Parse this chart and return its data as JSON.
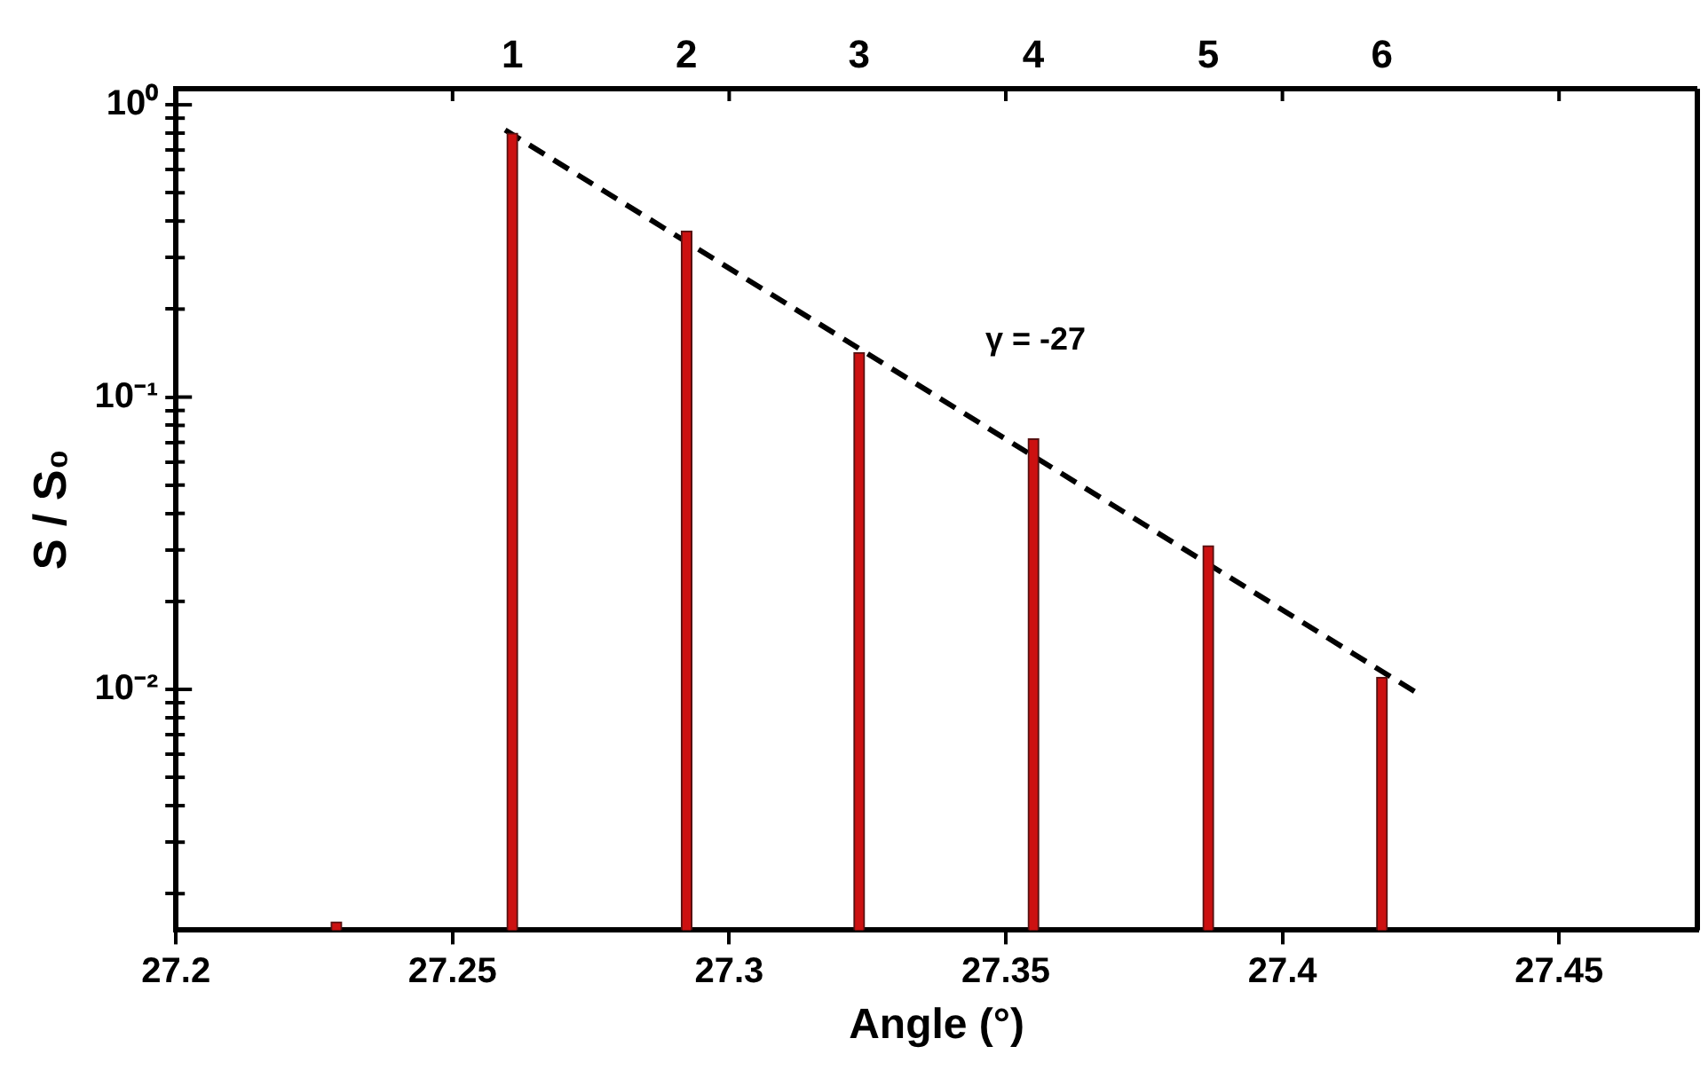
{
  "chart_data": {
    "type": "bar",
    "xlabel": "Angle (°)",
    "ylabel": "S / S₀",
    "series": [
      {
        "color": "#cc1111",
        "x": [
          27.229,
          27.2608,
          27.2923,
          27.3235,
          27.355,
          27.3866,
          27.418
        ],
        "values": [
          0.0016,
          0.8,
          0.37,
          0.142,
          0.072,
          0.031,
          0.011
        ]
      },
      {
        "type": "line",
        "color": "#000000",
        "line_style": "dashed",
        "x": [
          27.2595,
          27.4244
        ],
        "values": [
          0.82,
          0.0097
        ]
      }
    ],
    "xlim": [
      27.2,
      27.475
    ],
    "xticks": [
      27.2,
      27.25,
      27.3,
      27.35,
      27.4,
      27.45
    ],
    "ylim": [
      0.0015,
      1.135
    ],
    "log": "y",
    "yticks": [
      {
        "value": 0.002,
        "label": null
      },
      {
        "value": 0.003,
        "label": null
      },
      {
        "value": 0.004,
        "label": null
      },
      {
        "value": 0.005,
        "label": null
      },
      {
        "value": 0.006,
        "label": null
      },
      {
        "value": 0.007,
        "label": null
      },
      {
        "value": 0.008,
        "label": null
      },
      {
        "value": 0.009,
        "label": null
      },
      {
        "value": 0.01,
        "label": "10⁻²"
      },
      {
        "value": 0.02,
        "label": null
      },
      {
        "value": 0.03,
        "label": null
      },
      {
        "value": 0.04,
        "label": null
      },
      {
        "value": 0.05,
        "label": null
      },
      {
        "value": 0.06,
        "label": null
      },
      {
        "value": 0.07,
        "label": null
      },
      {
        "value": 0.08,
        "label": null
      },
      {
        "value": 0.09,
        "label": null
      },
      {
        "value": 0.1,
        "label": "10⁻¹"
      },
      {
        "value": 0.2,
        "label": null
      },
      {
        "value": 0.3,
        "label": null
      },
      {
        "value": 0.4,
        "label": null
      },
      {
        "value": 0.5,
        "label": null
      },
      {
        "value": 0.6,
        "label": null
      },
      {
        "value": 0.7,
        "label": null
      },
      {
        "value": 0.8,
        "label": null
      },
      {
        "value": 0.9,
        "label": null
      },
      {
        "value": 1,
        "label": "10⁰"
      }
    ],
    "annotations": [
      "1",
      "2",
      "3",
      "4",
      "5",
      "6",
      "γ = -27"
    ],
    "grid": false,
    "legend": false
  }
}
